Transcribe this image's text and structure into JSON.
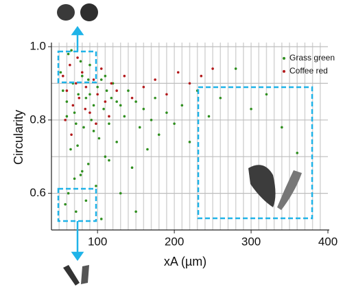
{
  "chart_data": {
    "type": "scatter",
    "xlabel": "xA (µm)",
    "ylabel": "Circularity",
    "xlim": [
      40,
      400
    ],
    "ylim": [
      0.5,
      1.0
    ],
    "xticks": [
      100,
      200,
      300,
      400
    ],
    "yticks": [
      {
        "value": 0.6,
        "label": "0.6"
      },
      {
        "value": 0.8,
        "label": "0.8"
      },
      {
        "value": 1.0,
        "label": "1.0"
      }
    ],
    "minor_yticks": [
      0.7,
      0.9
    ],
    "minor_xticks": [
      50,
      60,
      70,
      80,
      90,
      100,
      110,
      120,
      130,
      140,
      150,
      160,
      170,
      180,
      190,
      200,
      210,
      220,
      230,
      240,
      250,
      260,
      270,
      280,
      290,
      300,
      310,
      320,
      330,
      340,
      350,
      360,
      370,
      380,
      390
    ],
    "grid": true,
    "legend": "upper right",
    "series": [
      {
        "name": "Grass green",
        "color": "#2f8f1f",
        "x": [
          52,
          55,
          58,
          60,
          62,
          65,
          68,
          70,
          72,
          75,
          78,
          80,
          82,
          85,
          88,
          90,
          92,
          95,
          98,
          100,
          102,
          105,
          108,
          110,
          112,
          115,
          118,
          120,
          125,
          130,
          135,
          140,
          145,
          150,
          155,
          160,
          165,
          170,
          175,
          180,
          190,
          200,
          210,
          220,
          230,
          245,
          260,
          280,
          300,
          320,
          340,
          360,
          62,
          70,
          78,
          85,
          95,
          105,
          115,
          60,
          66,
          74,
          88,
          130,
          150,
          90,
          80,
          72,
          110,
          125
        ],
        "values": [
          0.93,
          0.88,
          0.57,
          0.85,
          0.98,
          0.72,
          0.9,
          0.82,
          0.55,
          0.87,
          0.65,
          0.92,
          0.78,
          0.86,
          0.68,
          0.95,
          0.8,
          0.84,
          0.62,
          0.89,
          0.75,
          0.91,
          0.83,
          0.7,
          0.88,
          0.79,
          0.86,
          0.9,
          0.74,
          0.84,
          0.81,
          0.88,
          0.67,
          0.85,
          0.78,
          0.83,
          0.72,
          0.8,
          0.86,
          0.76,
          0.82,
          0.79,
          0.84,
          0.74,
          0.88,
          0.81,
          0.86,
          0.94,
          0.83,
          0.87,
          0.78,
          0.71,
          0.6,
          0.64,
          0.96,
          0.58,
          0.77,
          0.53,
          0.69,
          0.81,
          0.99,
          0.73,
          0.91,
          0.6,
          0.55,
          0.87,
          0.66,
          0.79,
          0.92,
          0.85
        ]
      },
      {
        "name": "Coffee red",
        "color": "#b3191b",
        "x": [
          55,
          60,
          64,
          68,
          72,
          76,
          80,
          85,
          90,
          95,
          100,
          105,
          110,
          118,
          125,
          135,
          145,
          160,
          175,
          190,
          205,
          220,
          235,
          250,
          58,
          66,
          74,
          84,
          98,
          115
        ],
        "values": [
          0.92,
          0.88,
          0.95,
          0.84,
          0.9,
          0.86,
          0.93,
          0.89,
          0.82,
          0.91,
          0.87,
          0.94,
          0.85,
          0.9,
          0.88,
          0.92,
          0.86,
          0.89,
          0.91,
          0.87,
          0.93,
          0.9,
          0.92,
          0.94,
          0.8,
          0.76,
          0.97,
          0.83,
          0.79,
          0.81
        ]
      }
    ]
  }
}
